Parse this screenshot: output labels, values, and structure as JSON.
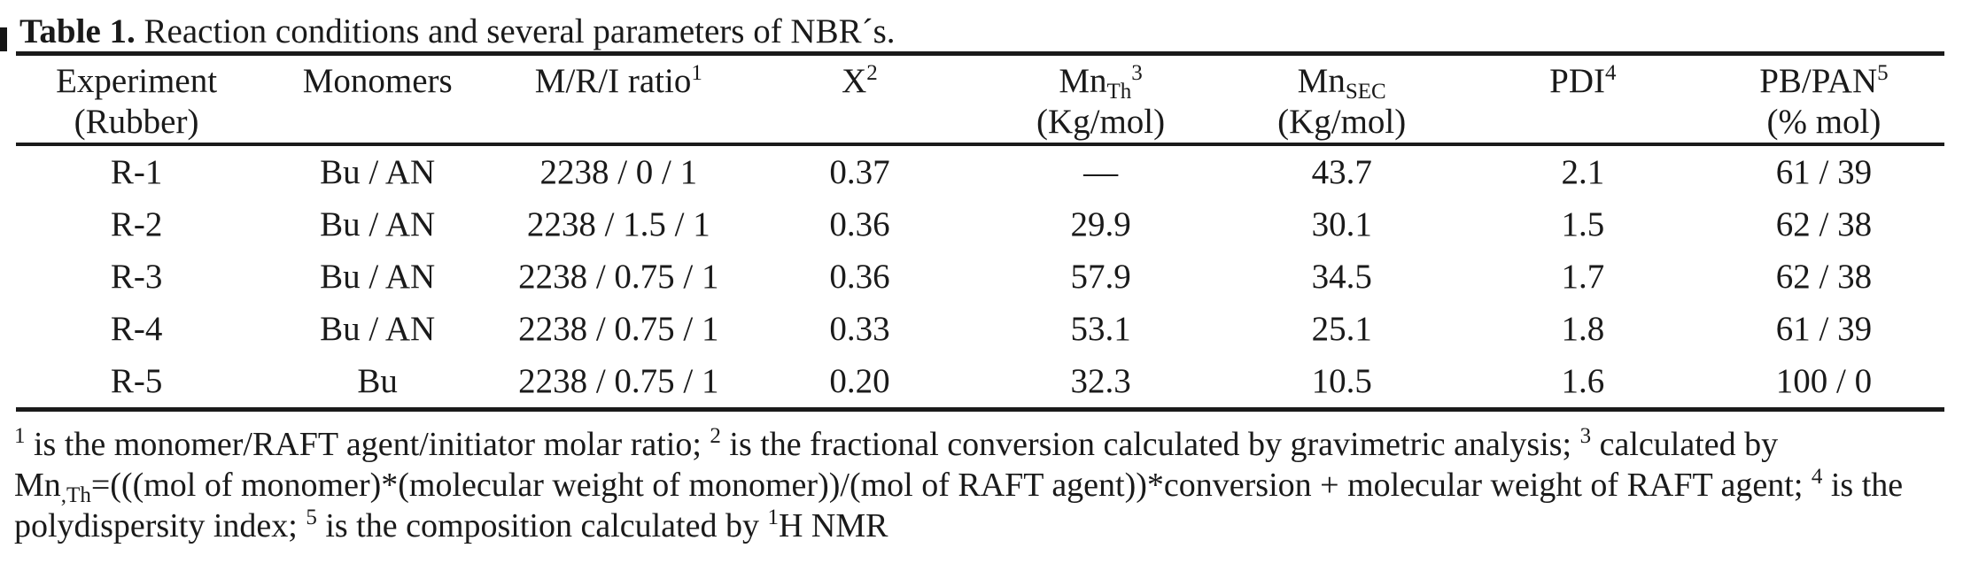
{
  "colors": {
    "text": "#1a1a1a",
    "background": "#ffffff",
    "rule": "#1a1a1a"
  },
  "title": {
    "label": "Table 1.",
    "text": " Reaction conditions and several parameters of NBR´s."
  },
  "table": {
    "headers": [
      {
        "line1": "Experiment",
        "line2": "(Rubber)"
      },
      {
        "line1": "Monomers",
        "line2": ""
      },
      {
        "line1": "M/R/I ratio",
        "sup": "1",
        "line2": ""
      },
      {
        "line1": "X",
        "sup": "2",
        "line2": ""
      },
      {
        "line1": "Mn",
        "sub": "Th",
        "sup": "3",
        "line2": "(Kg/mol)"
      },
      {
        "line1": "Mn",
        "sub": "SEC",
        "line2": "(Kg/mol)"
      },
      {
        "line1": "PDI",
        "sup": "4",
        "line2": ""
      },
      {
        "line1": "PB/PAN",
        "sup": "5",
        "line2": "(% mol)"
      }
    ],
    "rows": [
      {
        "cells": [
          "R-1",
          "Bu / AN",
          "2238 / 0 / 1",
          "0.37",
          "—",
          "43.7",
          "2.1",
          "61 / 39"
        ]
      },
      {
        "cells": [
          "R-2",
          "Bu / AN",
          "2238 / 1.5 / 1",
          "0.36",
          "29.9",
          "30.1",
          "1.5",
          "62 / 38"
        ]
      },
      {
        "cells": [
          "R-3",
          "Bu / AN",
          "2238 / 0.75 / 1",
          "0.36",
          "57.9",
          "34.5",
          "1.7",
          "62 / 38"
        ]
      },
      {
        "cells": [
          "R-4",
          "Bu / AN",
          "2238 / 0.75 / 1",
          "0.33",
          "53.1",
          "25.1",
          "1.8",
          "61 / 39"
        ]
      },
      {
        "cells": [
          "R-5",
          "Bu",
          "2238 / 0.75 / 1",
          "0.20",
          "32.3",
          "10.5",
          "1.6",
          "100 / 0"
        ]
      }
    ]
  },
  "footnotes": {
    "line1": {
      "m1": "1",
      "t1": " is the monomer/RAFT agent/initiator molar ratio; ",
      "m2": "2",
      "t2": " is the fractional conversion calculated by gravimetric analysis; ",
      "m3": "3",
      "t3": " calculated by"
    },
    "line2": {
      "t1": "Mn",
      "sub1": ",Th",
      "t2": "=(((mol of monomer)*(molecular weight of monomer))/(mol of RAFT agent))*conversion + molecular weight of RAFT agent; ",
      "m1": "4",
      "t3": " is the"
    },
    "line3": {
      "t1": "polydispersity index; ",
      "m1": "5",
      "t2": " is the composition calculated by ",
      "m2": "1",
      "t3": "H NMR"
    }
  }
}
